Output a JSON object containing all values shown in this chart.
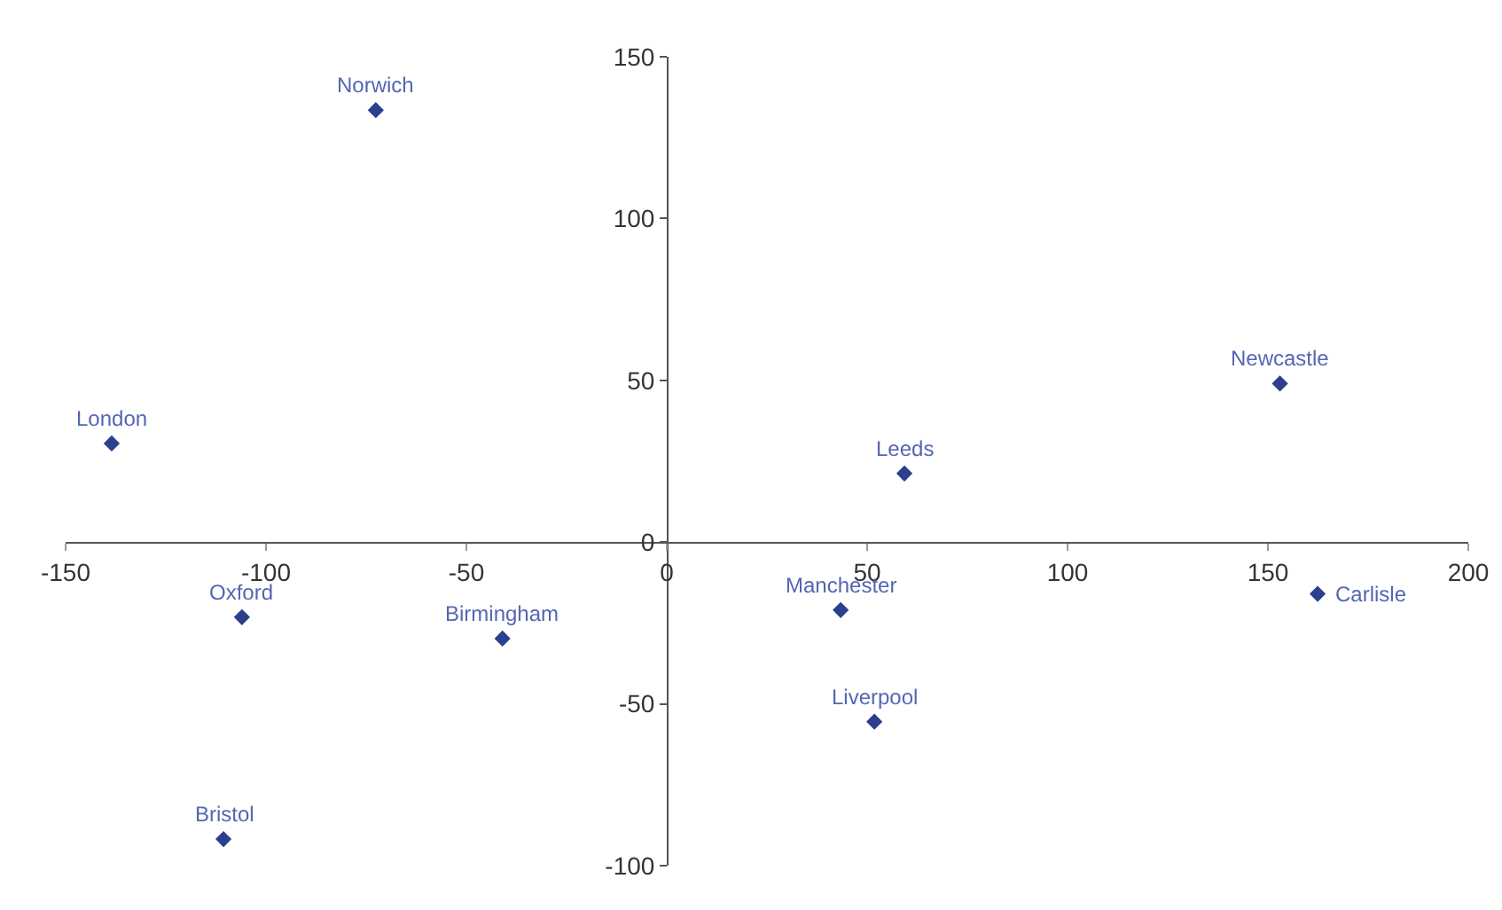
{
  "chart_data": {
    "type": "scatter",
    "marker": "diamond",
    "grid": false,
    "x": [
      -72.6,
      -138.5,
      -106,
      -41,
      -110.6,
      43.4,
      59.3,
      51.8,
      153,
      162.4
    ],
    "values": [
      133.5,
      30.5,
      -23.2,
      -29.8,
      -91.8,
      -21,
      21.2,
      -55.5,
      49,
      -16
    ],
    "color": "#2b3f8c",
    "xlim": [
      -150,
      200
    ],
    "xticks": [
      -150,
      -100,
      -50,
      0,
      50,
      100,
      150,
      200
    ],
    "ylim": [
      -100,
      150
    ],
    "yticks": [
      -100,
      -50,
      0,
      50,
      100,
      150
    ],
    "annotations": [
      {
        "text": "Norwich",
        "x": -72.6,
        "y": 133.5
      },
      {
        "text": "London",
        "x": -138.5,
        "y": 30.5
      },
      {
        "text": "Oxford",
        "x": -106,
        "y": -23.2
      },
      {
        "text": "Birmingham",
        "x": -41,
        "y": -29.8
      },
      {
        "text": "Bristol",
        "x": -110.6,
        "y": -91.8
      },
      {
        "text": "Manchester",
        "x": 43.4,
        "y": -21
      },
      {
        "text": "Leeds",
        "x": 59.3,
        "y": 21.2
      },
      {
        "text": "Liverpool",
        "x": 51.8,
        "y": -55.5
      },
      {
        "text": "Newcastle",
        "x": 153,
        "y": 49
      },
      {
        "text": "Carlisle",
        "x": 162.4,
        "y": -16
      }
    ]
  }
}
